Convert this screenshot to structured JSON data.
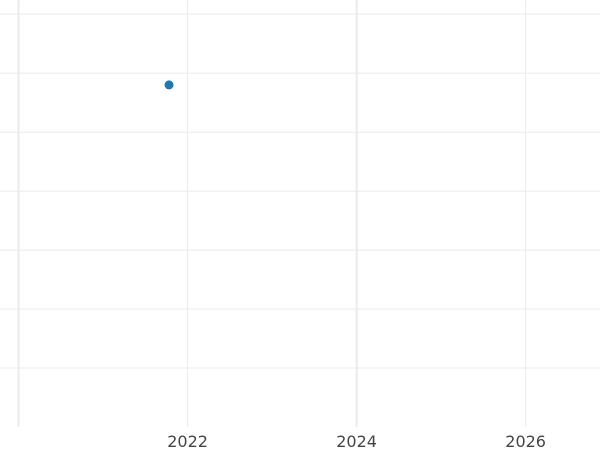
{
  "chart_data": {
    "type": "scatter",
    "title": "",
    "xlabel": "",
    "ylabel": "",
    "x_ticks": [
      2020,
      2022,
      2024,
      2026
    ],
    "x_tick_labels": [
      "",
      "2022",
      "2024",
      "2026"
    ],
    "y_ticks": [
      0,
      1,
      2,
      3,
      4,
      5,
      6
    ],
    "xlim": [
      2019.78,
      2026.88
    ],
    "ylim": [
      -1.0,
      6.24
    ],
    "grid": true,
    "points": [
      {
        "x": 2021.78,
        "y": 4.8
      }
    ],
    "point_color": "#1f77b4",
    "grid_color": "#ebebeb"
  }
}
